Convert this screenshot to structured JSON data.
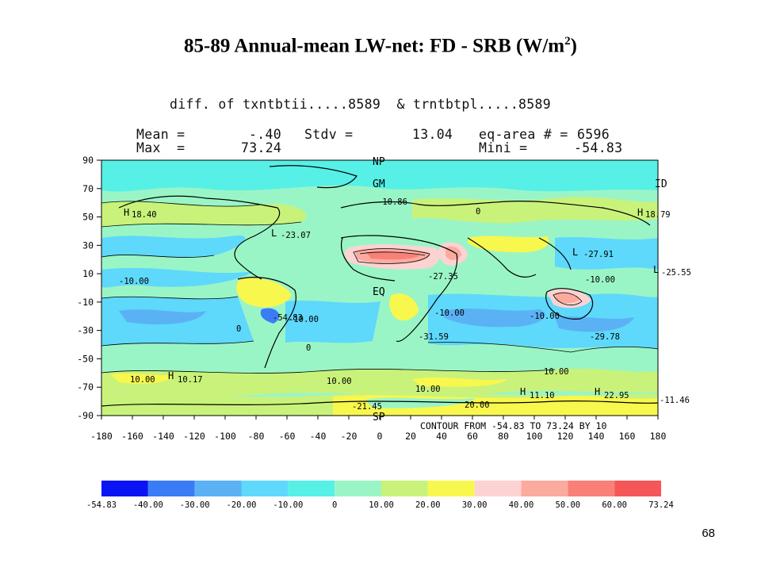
{
  "slide": {
    "title": "85-89 Annual-mean LW-net: FD - SRB (W/m",
    "title_superscript": "2",
    "title_close": ")",
    "page_number": "68"
  },
  "plot_header": {
    "line1": "diff. of txntbtii.....8589  & trntbtpl.....8589",
    "mean_label": "Mean =",
    "mean_value": "-.40",
    "stdv_label": "Stdv =",
    "stdv_value": "13.04",
    "eqarea_label": "eq-area # =",
    "eqarea_value": "6596",
    "max_label": "Max  =",
    "max_value": "73.24",
    "min_label": "Mini =",
    "min_value": "-54.83"
  },
  "map": {
    "lat_ticks": [
      "90",
      "70",
      "50",
      "30",
      "10",
      "-10",
      "-30",
      "-50",
      "-70",
      "-90"
    ],
    "lon_ticks": [
      "-180",
      "-160",
      "-140",
      "-120",
      "-100",
      "-80",
      "-60",
      "-40",
      "-20",
      "0",
      "20",
      "40",
      "60",
      "80",
      "100",
      "120",
      "140",
      "160",
      "180"
    ],
    "contour_note": "CONTOUR FROM -54.83 TO 73.24 BY 10",
    "annotations": [
      {
        "text": "NP"
      },
      {
        "text": "GM"
      },
      {
        "text": "ID"
      },
      {
        "text": "EQ"
      },
      {
        "text": "SP"
      },
      {
        "text": "H"
      },
      {
        "text": "18.40"
      },
      {
        "text": "L"
      },
      {
        "text": "-23.07"
      },
      {
        "text": "L"
      },
      {
        "text": "-27.91"
      },
      {
        "text": "L"
      },
      {
        "text": "-25.55"
      },
      {
        "text": "H"
      },
      {
        "text": "18.79"
      },
      {
        "text": "-27.35"
      },
      {
        "text": "-10.00"
      },
      {
        "text": "-10.00"
      },
      {
        "text": "-10.00"
      },
      {
        "text": "-10.00"
      },
      {
        "text": "-54.83"
      },
      {
        "text": "-31.59"
      },
      {
        "text": "-10.00"
      },
      {
        "text": "-29.78"
      },
      {
        "text": "H"
      },
      {
        "text": "10.17"
      },
      {
        "text": "10.00"
      },
      {
        "text": "10.00"
      },
      {
        "text": "10.00"
      },
      {
        "text": "10.00"
      },
      {
        "text": "20.00"
      },
      {
        "text": "H"
      },
      {
        "text": "11.10"
      },
      {
        "text": "H"
      },
      {
        "text": "22.95"
      },
      {
        "text": "-11.46"
      },
      {
        "text": "-10.86"
      },
      {
        "text": "-21.45"
      },
      {
        "text": "0"
      },
      {
        "text": "0"
      },
      {
        "text": "0"
      }
    ]
  },
  "legend": {
    "colors": [
      "#0a14f5",
      "#3a7cf5",
      "#5ab2f5",
      "#5ed8fb",
      "#56f0e6",
      "#9af5c6",
      "#c9f27a",
      "#f8f74e",
      "#fdd2d2",
      "#fbab9e",
      "#f98078",
      "#f55758"
    ],
    "labels": [
      "-54.83",
      "-40.00",
      "-30.00",
      "-20.00",
      "-10.00",
      "0",
      "10.00",
      "20.00",
      "30.00",
      "40.00",
      "50.00",
      "60.00",
      "73.24"
    ]
  }
}
